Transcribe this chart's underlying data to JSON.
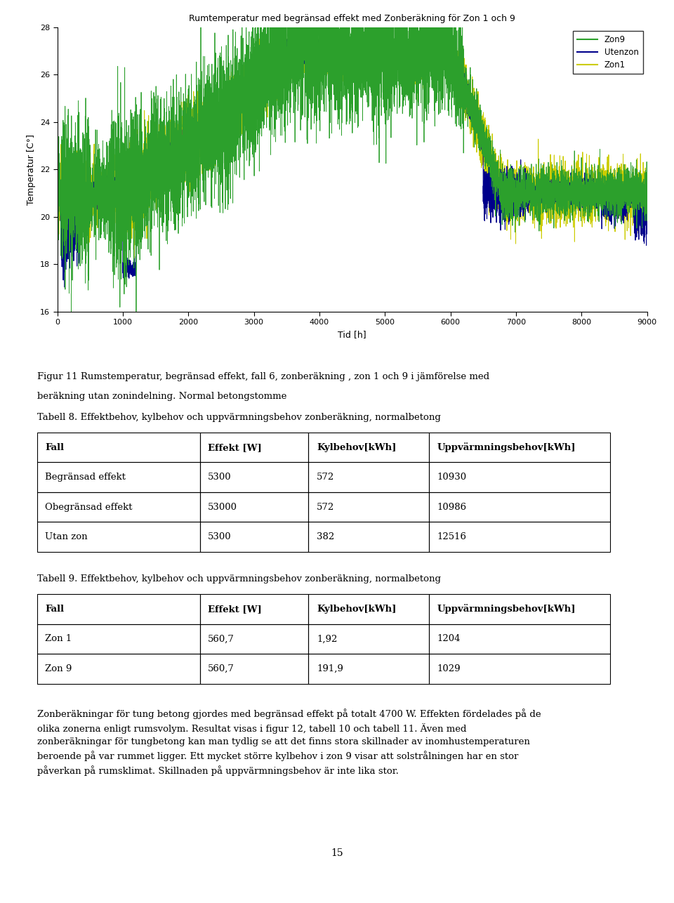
{
  "chart_title": "Rumtemperatur med begränsad effekt med Zonberäkning för Zon 1 och 9",
  "xlabel": "Tid [h]",
  "ylabel": "Temperatur [C°]",
  "xlim": [
    0,
    9000
  ],
  "ylim": [
    16,
    28
  ],
  "yticks": [
    16,
    18,
    20,
    22,
    24,
    26,
    28
  ],
  "xticks": [
    0,
    1000,
    2000,
    3000,
    4000,
    5000,
    6000,
    7000,
    8000,
    9000
  ],
  "legend_entries": [
    "Zon9",
    "Utenzon",
    "Zon1"
  ],
  "legend_colors": [
    "#2ca02c",
    "#00008B",
    "#cccc00"
  ],
  "fig_caption_line1": "Figur 11 Rumstemperatur, begränsad effekt, fall 6, zonberäkning , zon 1 och 9 i jämförelse med",
  "fig_caption_line2": "beräkning utan zonindelning. Normal betongstomme",
  "table8_title": "Tabell 8. Effektbehov, kylbehov och uppvärmningsbehov zonberäkning, normalbetong",
  "table8_headers": [
    "Fall",
    "Effekt [W]",
    "Kylbehov[kWh]",
    "Uppvärmningsbehov[kWh]"
  ],
  "table8_rows": [
    [
      "Begränsad effekt",
      "5300",
      "572",
      "10930"
    ],
    [
      "Obegränsad effekt",
      "53000",
      "572",
      "10986"
    ],
    [
      "Utan zon",
      "5300",
      "382",
      "12516"
    ]
  ],
  "table9_title": "Tabell 9. Effektbehov, kylbehov och uppvärmningsbehov zonberäkning, normalbetong",
  "table9_headers": [
    "Fall",
    "Effekt [W]",
    "Kylbehov[kWh]",
    "Uppvärmningsbehov[kWh]"
  ],
  "table9_rows": [
    [
      "Zon 1",
      "560,7",
      "1,92",
      "1204"
    ],
    [
      "Zon 9",
      "560,7",
      "191,9",
      "1029"
    ]
  ],
  "body_text": "Zonberäkningar för tung betong gjordes med begränsad effekt på totalt 4700 W. Effekten fördelades på de\nolika zonerna enligt rumsvolym. Resultat visas i figur 12, tabell 10 och tabell 11. Även med\nzonberäkningar för tungbetong kan man tydlig se att det finns stora skillnader av inomhustemperaturen\nberoende på var rummet ligger. Ett mycket större kylbehov i zon 9 visar att solstrålningen har en stor\npåverkan på rumsklimat. Skillnaden på uppvärmningsbehov är inte lika stor.",
  "page_number": "15",
  "background_color": "#ffffff"
}
